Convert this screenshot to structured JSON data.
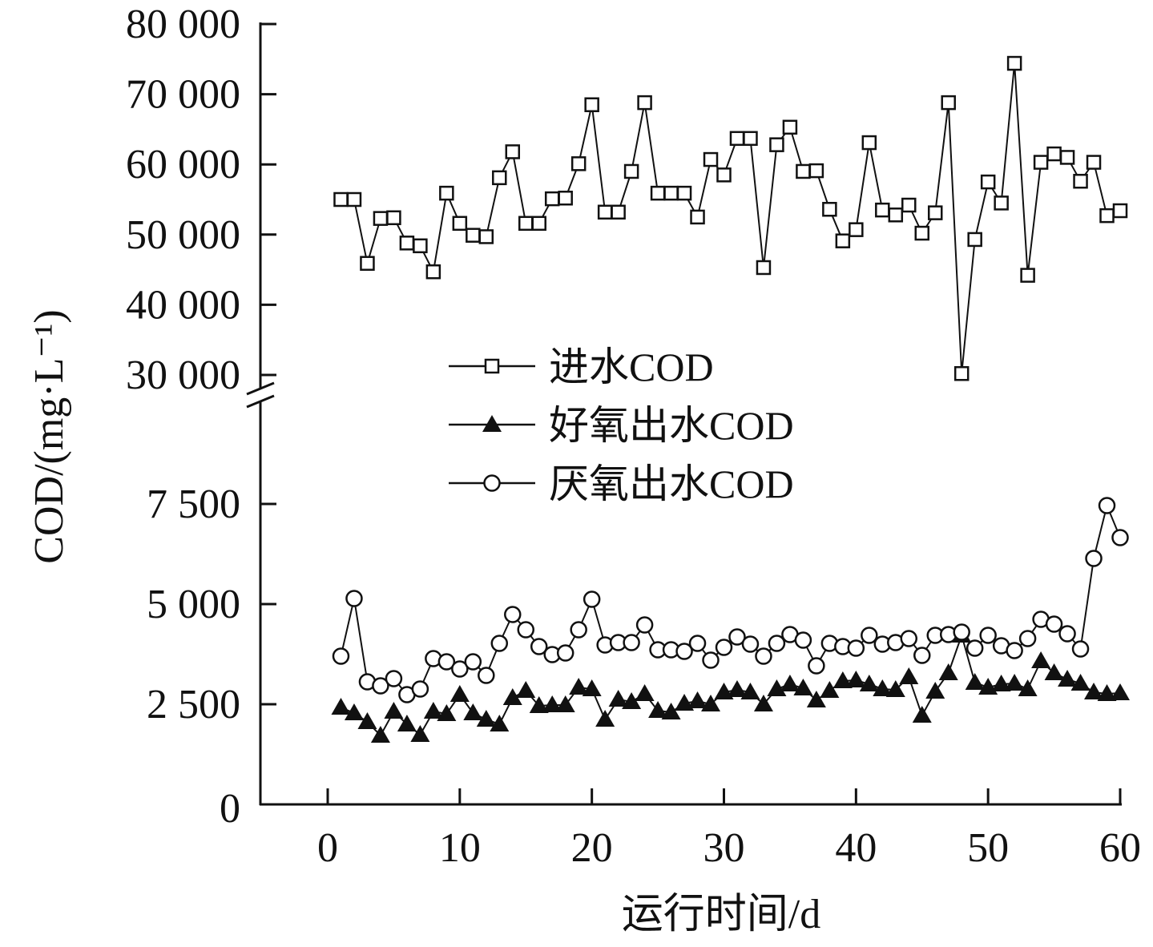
{
  "chart_data": {
    "type": "line",
    "title": "",
    "xlabel": "运行时间/d",
    "ylabel": "COD/(mg·L⁻¹)",
    "xlim": [
      0,
      60
    ],
    "x_ticks": [
      "0",
      "10",
      "20",
      "30",
      "40",
      "50",
      "60"
    ],
    "y_axis_broken": true,
    "ylim_upper": [
      30000,
      80000
    ],
    "ylim_lower": [
      0,
      7500
    ],
    "y_ticks_upper": [
      "30 000",
      "40 000",
      "50 000",
      "60 000",
      "70 000",
      "80 000"
    ],
    "y_ticks_lower": [
      "0",
      "2 500",
      "5 000",
      "7 500"
    ],
    "legend_position": "center",
    "x": [
      1,
      2,
      3,
      4,
      5,
      6,
      7,
      8,
      9,
      10,
      11,
      12,
      13,
      14,
      15,
      16,
      17,
      18,
      19,
      20,
      21,
      22,
      23,
      24,
      25,
      26,
      27,
      28,
      29,
      30,
      31,
      32,
      33,
      34,
      35,
      36,
      37,
      38,
      39,
      40,
      41,
      42,
      43,
      44,
      45,
      46,
      47,
      48,
      49,
      50,
      51,
      52,
      53,
      54,
      55,
      56,
      57,
      58,
      59,
      60
    ],
    "series": [
      {
        "name": "进水COD",
        "marker": "open-square",
        "axis": "upper",
        "values": [
          55000,
          55000,
          45900,
          52300,
          52400,
          48800,
          48400,
          44700,
          55900,
          51600,
          49900,
          49700,
          58100,
          61800,
          51600,
          51600,
          55100,
          55200,
          60100,
          68500,
          53200,
          53200,
          59000,
          68800,
          55900,
          55900,
          55900,
          52500,
          60700,
          58500,
          63700,
          63700,
          45300,
          62800,
          65300,
          59000,
          59100,
          53600,
          49100,
          50700,
          63100,
          53500,
          52800,
          54200,
          50200,
          53100,
          68800,
          30200,
          49300,
          57500,
          54500,
          74400,
          44200,
          60300,
          61500,
          61000,
          57600,
          60300,
          52700,
          53400
        ]
      },
      {
        "name": "好氧出水COD",
        "marker": "filled-triangle",
        "axis": "lower",
        "values": [
          2420,
          2280,
          2060,
          1720,
          2320,
          2000,
          1740,
          2320,
          2260,
          2740,
          2280,
          2120,
          2000,
          2660,
          2840,
          2460,
          2480,
          2480,
          2920,
          2880,
          2120,
          2620,
          2560,
          2760,
          2340,
          2300,
          2520,
          2580,
          2500,
          2800,
          2860,
          2800,
          2500,
          2880,
          3000,
          2900,
          2600,
          2840,
          3080,
          3100,
          3000,
          2880,
          2860,
          3180,
          2220,
          2820,
          3280,
          4220,
          3040,
          2920,
          3000,
          3020,
          2880,
          3580,
          3280,
          3120,
          3020,
          2800,
          2760,
          2780
        ]
      },
      {
        "name": "厌氧出水COD",
        "marker": "open-circle",
        "axis": "lower",
        "values": [
          3700,
          5140,
          3060,
          2960,
          3140,
          2740,
          2880,
          3640,
          3560,
          3380,
          3560,
          3220,
          4020,
          4740,
          4360,
          3940,
          3740,
          3780,
          4360,
          5120,
          3980,
          4040,
          4040,
          4480,
          3860,
          3860,
          3820,
          4020,
          3600,
          3920,
          4180,
          4000,
          3700,
          4020,
          4240,
          4100,
          3460,
          4020,
          3940,
          3900,
          4220,
          4000,
          4040,
          4140,
          3720,
          4220,
          4240,
          4300,
          3900,
          4220,
          3960,
          3840,
          4140,
          4620,
          4500,
          4260,
          3880,
          6140,
          7460,
          6660
        ]
      }
    ]
  }
}
